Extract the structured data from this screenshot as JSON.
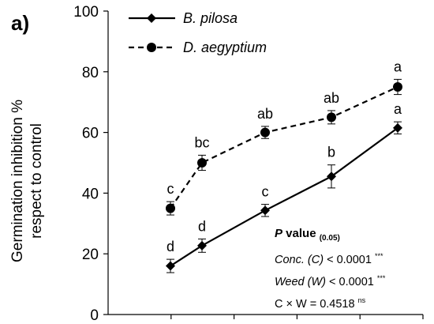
{
  "panel_label": "a)",
  "chart_data": {
    "type": "line",
    "ylabel_line1": "Germination  inhibition %",
    "ylabel_line2": "respect to control",
    "xlabel": "",
    "x": [
      1,
      2,
      3,
      4,
      5
    ],
    "ylim": [
      0,
      100
    ],
    "yticks": [
      0,
      20,
      40,
      60,
      80,
      100
    ],
    "grid": false,
    "legend_position": "top-left",
    "series": [
      {
        "name": "B. pilosa",
        "style": "solid",
        "marker": "diamond",
        "values": [
          16,
          22.7,
          34.3,
          45.5,
          61.5
        ],
        "errors": [
          2.2,
          2.2,
          2.0,
          3.8,
          2.0
        ],
        "letters": [
          "d",
          "d",
          "c",
          "b",
          "a"
        ],
        "color": "#000000"
      },
      {
        "name": "D. aegyptium",
        "style": "dashed",
        "marker": "circle",
        "values": [
          35,
          50,
          60,
          65,
          75
        ],
        "errors": [
          2.2,
          2.5,
          2.0,
          2.2,
          2.5
        ],
        "letters": [
          "c",
          "bc",
          "ab",
          "ab",
          "a"
        ],
        "color": "#000000"
      }
    ],
    "stats": {
      "title": "P value",
      "title_rest": " value ",
      "subscript": "(0.05)",
      "rows": [
        {
          "label": "Conc. (C)",
          "text": " < 0.0001 ",
          "sig": "***"
        },
        {
          "label": "Weed (W)",
          "text": " < 0.0001 ",
          "sig": "***"
        },
        {
          "label": "",
          "text": "C × W = 0.4518 ",
          "sig": "ns"
        }
      ]
    }
  }
}
